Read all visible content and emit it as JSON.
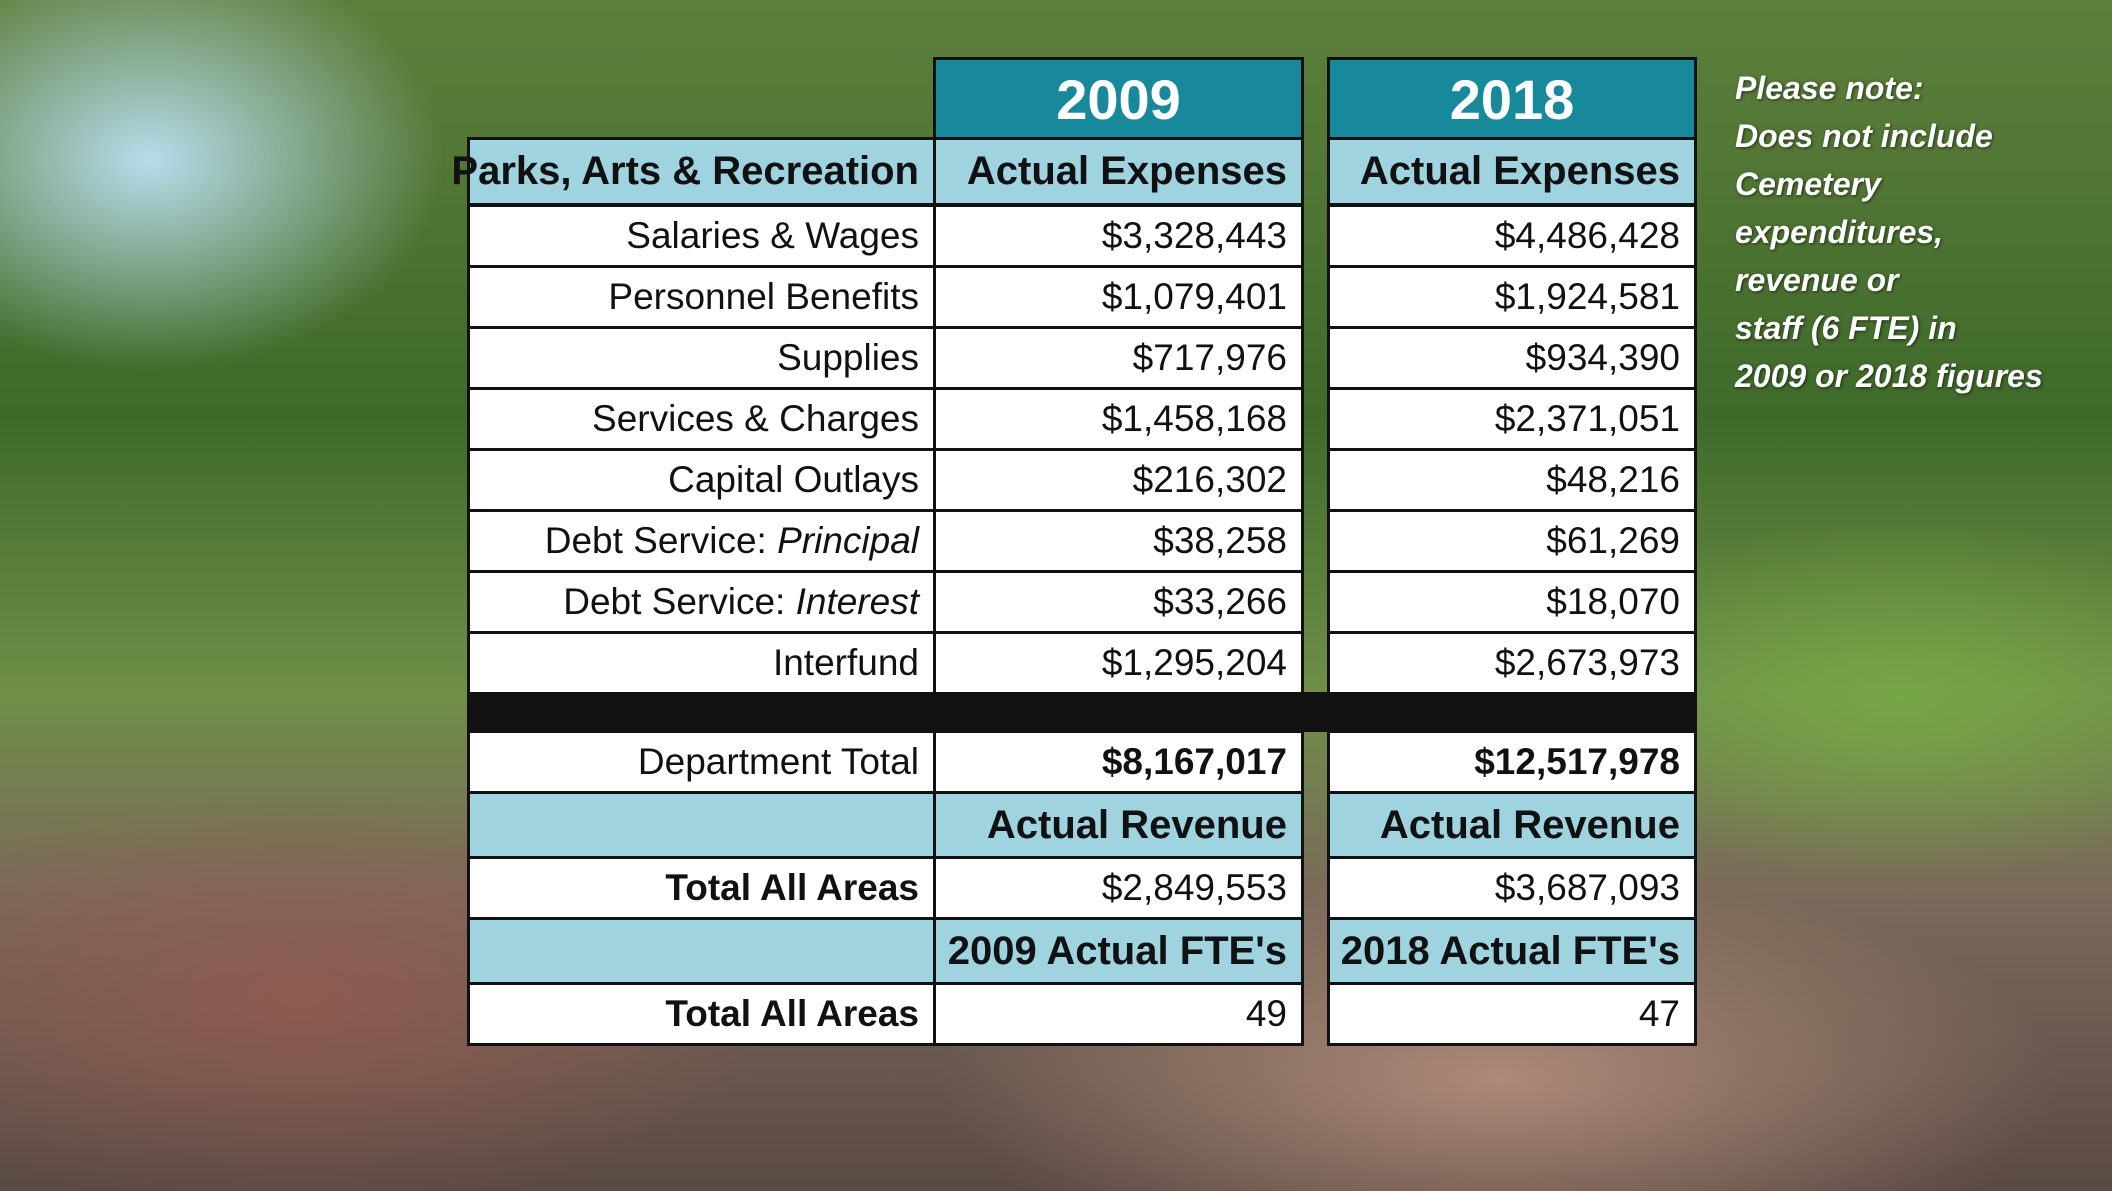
{
  "header": {
    "years": [
      "2009",
      "2018"
    ]
  },
  "table": {
    "columns": [
      "Parks, Arts & Recreation",
      "Actual Expenses",
      "Actual Expenses"
    ],
    "expense_rows": [
      [
        {
          "text": "Salaries & Wages"
        },
        "$3,328,443",
        "$4,486,428"
      ],
      [
        {
          "text": "Personnel Benefits"
        },
        "$1,079,401",
        "$1,924,581"
      ],
      [
        {
          "text": "Supplies"
        },
        "$717,976",
        "$934,390"
      ],
      [
        {
          "text": "Services & Charges"
        },
        "$1,458,168",
        "$2,371,051"
      ],
      [
        {
          "text": "Capital Outlays"
        },
        "$216,302",
        "$48,216"
      ],
      [
        {
          "text": "Debt Service:",
          "italic": "Principal"
        },
        "$38,258",
        "$61,269"
      ],
      [
        {
          "text": "Debt Service:",
          "italic": "Interest"
        },
        "$33,266",
        "$18,070"
      ],
      [
        {
          "text": "Interfund"
        },
        "$1,295,204",
        "$2,673,973"
      ]
    ],
    "department_total": [
      "Department Total",
      "$8,167,017",
      "$12,517,978"
    ],
    "revenue_header": [
      "Actual Revenue",
      "Actual Revenue"
    ],
    "revenue_row": [
      "Total All Areas",
      "$2,849,553",
      "$3,687,093"
    ],
    "fte_header": [
      "2009 Actual FTE's",
      "2018 Actual FTE's"
    ],
    "fte_row": [
      "Total All Areas",
      49,
      47
    ]
  },
  "note": [
    "Please note:",
    "Does not include",
    "Cemetery",
    "expenditures,",
    "revenue or",
    "staff (6 FTE) in",
    "2009 or 2018 figures"
  ]
}
